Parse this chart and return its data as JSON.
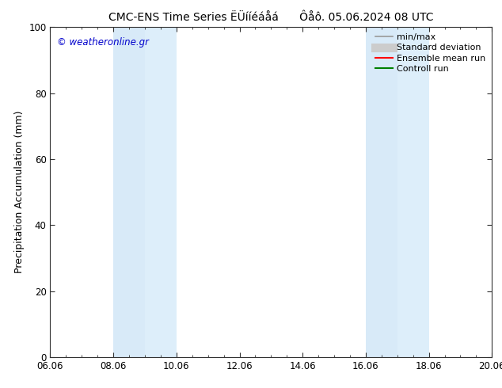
{
  "title": "CMC-ENS Time Series ËÜííéáåá      Ôåô. 05.06.2024 08 UTC",
  "ylabel": "Precipitation Accumulation (mm)",
  "watermark": "© weatheronline.gr",
  "watermark_color": "#0000cc",
  "ylim": [
    0,
    100
  ],
  "yticks": [
    0,
    20,
    40,
    60,
    80,
    100
  ],
  "x_start": 6.06,
  "x_end": 20.06,
  "xtick_labels": [
    "06.06",
    "08.06",
    "10.06",
    "12.06",
    "14.06",
    "16.06",
    "18.06",
    "20.06"
  ],
  "xtick_positions": [
    6.06,
    8.06,
    10.06,
    12.06,
    14.06,
    16.06,
    18.06,
    20.06
  ],
  "shaded_bands": [
    {
      "x_start": 8.06,
      "x_end": 9.06,
      "color": "#d8eaf8"
    },
    {
      "x_start": 9.06,
      "x_end": 10.06,
      "color": "#ddeefa"
    },
    {
      "x_start": 16.06,
      "x_end": 17.06,
      "color": "#d8eaf8"
    },
    {
      "x_start": 17.06,
      "x_end": 18.06,
      "color": "#ddeefa"
    }
  ],
  "legend_entries": [
    {
      "label": "min/max",
      "color": "#999999",
      "lw": 1.2,
      "style": "solid"
    },
    {
      "label": "Standard deviation",
      "color": "#cccccc",
      "lw": 8,
      "style": "solid"
    },
    {
      "label": "Ensemble mean run",
      "color": "#ff0000",
      "lw": 1.5,
      "style": "solid"
    },
    {
      "label": "Controll run",
      "color": "#008000",
      "lw": 1.5,
      "style": "solid"
    }
  ],
  "background_color": "#ffffff",
  "title_fontsize": 10,
  "axis_label_fontsize": 9,
  "tick_fontsize": 8.5,
  "legend_fontsize": 8
}
